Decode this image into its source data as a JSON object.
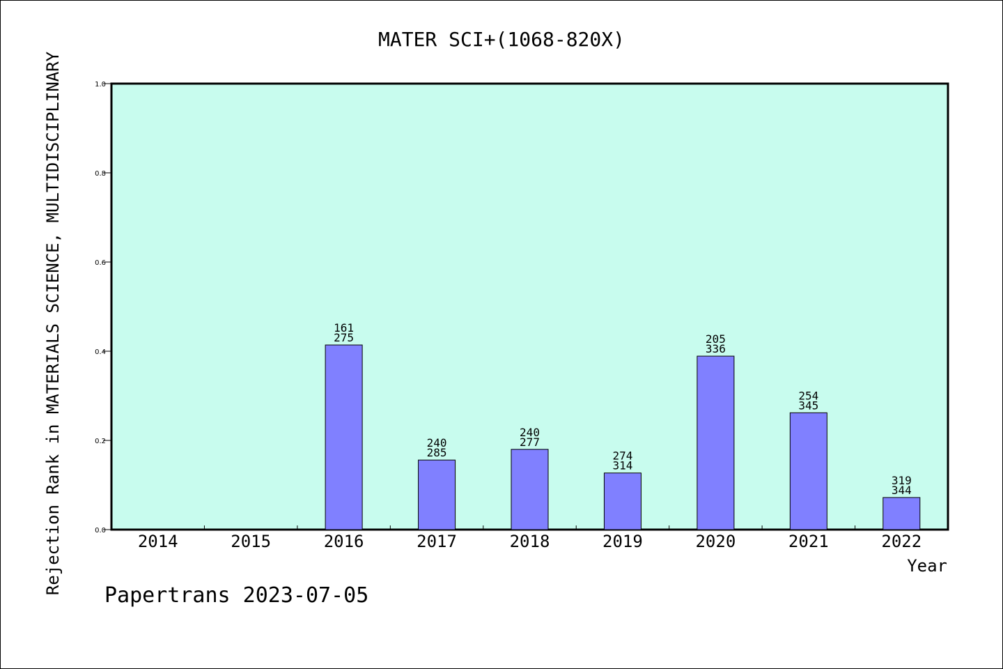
{
  "chart_data": {
    "type": "bar",
    "title": "MATER SCI+(1068-820X)",
    "xlabel": "Year",
    "ylabel": "Rejection Rank in MATERIALS SCIENCE, MULTIDISCIPLINARY",
    "footer": "Papertrans 2023-07-05",
    "ylim": [
      0,
      1.0
    ],
    "yticks": [
      "0.0",
      "0.2",
      "0.4",
      "0.6",
      "0.8",
      "1.0"
    ],
    "categories": [
      "2014",
      "2015",
      "2016",
      "2017",
      "2018",
      "2019",
      "2020",
      "2021",
      "2022"
    ],
    "values": [
      null,
      null,
      0.414,
      0.156,
      0.18,
      0.127,
      0.389,
      0.262,
      0.072
    ],
    "labels_top": [
      null,
      null,
      "161",
      "240",
      "240",
      "274",
      "205",
      "254",
      "319"
    ],
    "labels_bottom": [
      null,
      null,
      "275",
      "285",
      "277",
      "314",
      "336",
      "345",
      "344"
    ],
    "colors": {
      "plot_background": "#c8fcee",
      "bar_fill": "#8080ff",
      "bar_stroke": "#000000"
    }
  }
}
